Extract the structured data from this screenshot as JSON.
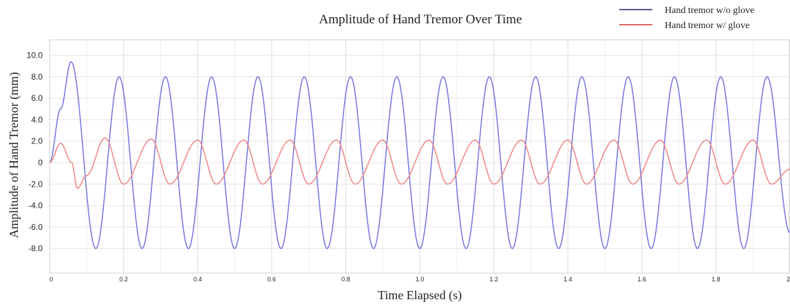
{
  "chart_data": {
    "type": "line",
    "title": "Amplitude of Hand Tremor Over Time",
    "xlabel": "Time Elapsed (s)",
    "ylabel": "Amplitude of Hand Tremor (mm)",
    "xlim": [
      0,
      2.0
    ],
    "ylim": [
      -10,
      11
    ],
    "x_ticks": [
      "0",
      "0.2",
      "0.4",
      "0.6",
      "0.8",
      "1.0",
      "1.2",
      "1.4",
      "1.6",
      "1.8",
      "2"
    ],
    "y_ticks": [
      "10.0",
      "8.0",
      "6.0",
      "4.0",
      "2.0",
      "0",
      "-2.0",
      "-4.0",
      "-6.0",
      "-8.0"
    ],
    "grid": true,
    "legend_position": "top-right",
    "series": [
      {
        "name": "Hand tremor w/o glove",
        "color": "#7b7be0",
        "legend_color": "#1a1a7a",
        "x": [
          0,
          0.03,
          0.058,
          0.125,
          0.188,
          0.25,
          0.313,
          0.375,
          0.438,
          0.5,
          0.563,
          0.625,
          0.688,
          0.75,
          0.813,
          0.875,
          0.938,
          1.0,
          1.063,
          1.125,
          1.188,
          1.25,
          1.313,
          1.375,
          1.438,
          1.5,
          1.563,
          1.625,
          1.688,
          1.75,
          1.813,
          1.875,
          1.938,
          2.0
        ],
        "y": [
          0,
          5.0,
          9.4,
          -8.0,
          8.0,
          -8.0,
          8.0,
          -8.0,
          8.0,
          -8.0,
          8.0,
          -8.0,
          8.0,
          -8.0,
          8.0,
          -8.0,
          8.0,
          -8.0,
          8.0,
          -8.0,
          8.0,
          -8.0,
          8.0,
          -8.0,
          8.0,
          -8.0,
          8.0,
          -8.0,
          8.0,
          -8.0,
          8.0,
          -8.0,
          8.0,
          -6.5
        ]
      },
      {
        "name": "Hand tremor w/ glove",
        "color": "#f08a8a",
        "legend_color": "#d03030",
        "x": [
          0,
          0.03,
          0.06,
          0.075,
          0.1,
          0.15,
          0.2,
          0.275,
          0.325,
          0.4,
          0.45,
          0.525,
          0.575,
          0.65,
          0.7,
          0.775,
          0.825,
          0.9,
          0.95,
          1.025,
          1.075,
          1.15,
          1.2,
          1.275,
          1.325,
          1.4,
          1.45,
          1.525,
          1.575,
          1.65,
          1.7,
          1.775,
          1.825,
          1.9,
          1.95,
          2.0
        ],
        "y": [
          0,
          1.8,
          0.0,
          -2.4,
          -1.2,
          2.3,
          -2.0,
          2.2,
          -2.0,
          2.1,
          -2.0,
          2.1,
          -2.0,
          2.1,
          -2.0,
          2.1,
          -2.0,
          2.1,
          -2.0,
          2.1,
          -2.0,
          2.1,
          -2.0,
          2.1,
          -2.0,
          2.1,
          -2.0,
          2.1,
          -2.0,
          2.1,
          -2.0,
          2.1,
          -2.0,
          2.1,
          -2.0,
          -0.6
        ]
      }
    ]
  }
}
